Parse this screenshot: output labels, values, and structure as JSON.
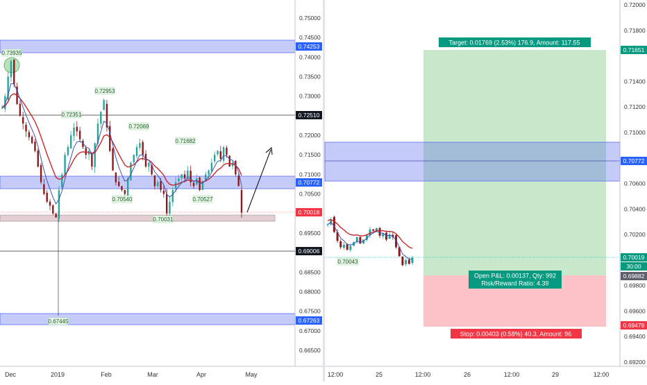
{
  "colors": {
    "up_candle": "#26a69a",
    "down_candle": "#8b1a1a",
    "ema_red": "#c62828",
    "ema_blue": "#3f51b5",
    "zone_blue": "#5b6cf0",
    "zone_pink": "#c9a7ad",
    "target_green": "#4caf50",
    "stop_red": "#f23645",
    "label_bg_black": "#131722"
  },
  "left_chart": {
    "y_axis_ticks": [
      "0.75000",
      "0.74500",
      "0.74000",
      "0.73500",
      "0.73000",
      "0.72500",
      "0.72000",
      "0.71500",
      "0.71000",
      "0.70500",
      "0.70000",
      "0.69500",
      "0.69000",
      "0.68500",
      "0.68000",
      "0.67500",
      "0.67000",
      "0.66500"
    ],
    "x_axis_ticks": [
      "Dec",
      "2019",
      "Feb",
      "Mar",
      "Apr",
      "May"
    ],
    "price_tags": {
      "zone_top": "0.74253",
      "resistance": "0.72510",
      "zone_mid": "0.70772",
      "current": "0.70018",
      "support": "0.69006",
      "zone_bottom": "0.67263"
    },
    "annotations": [
      "0.73935",
      "0.72953",
      "0.72351",
      "0.72069",
      "0.71682",
      "0.70540",
      "0.70527",
      "0.70031",
      "0.67445"
    ]
  },
  "right_chart": {
    "y_axis_ticks": [
      "0.72000",
      "0.71800",
      "0.71400",
      "0.71200",
      "0.71000",
      "0.70600",
      "0.70400",
      "0.70200",
      "0.69800",
      "0.69600",
      "0.69400",
      "0.69200"
    ],
    "x_axis_ticks": [
      "12:00",
      "25",
      "12:00",
      "26",
      "12:00",
      "29",
      "12:00"
    ],
    "price_tags": {
      "target": "0.71651",
      "zone": "0.70772",
      "current": "0.70019",
      "countdown": "30:00",
      "entry": "0.69882",
      "stop": "0.69479"
    },
    "annotation": "0.70043",
    "target_label": "Target: 0.01769 (2.53%) 176.9, Amount: 117.55",
    "pnl_line1": "Open P&L: 0.00137, Qty: 992",
    "pnl_line2": "Risk/Reward Ratio: 4.39",
    "stop_label": "Stop: 0.00403 (0.58%) 40.3, Amount: 96"
  },
  "chart_data": [
    {
      "type": "candlestick",
      "title": "",
      "x_axis": [
        "Dec",
        "2019",
        "Feb",
        "Mar",
        "Apr",
        "May"
      ],
      "ylim": [
        0.663,
        0.752
      ],
      "y_scale": "linear",
      "grid": false,
      "close_series": [
        0.727,
        0.73,
        0.735,
        0.739,
        0.733,
        0.728,
        0.725,
        0.723,
        0.721,
        0.7195,
        0.718,
        0.716,
        0.712,
        0.708,
        0.705,
        0.703,
        0.702,
        0.7,
        0.699,
        0.706,
        0.71,
        0.715,
        0.717,
        0.72,
        0.722,
        0.721,
        0.719,
        0.717,
        0.715,
        0.716,
        0.712,
        0.718,
        0.723,
        0.726,
        0.729,
        0.722,
        0.716,
        0.711,
        0.708,
        0.707,
        0.706,
        0.705,
        0.709,
        0.713,
        0.715,
        0.717,
        0.718,
        0.715,
        0.712,
        0.713,
        0.71,
        0.707,
        0.708,
        0.706,
        0.705,
        0.7,
        0.703,
        0.706,
        0.708,
        0.709,
        0.71,
        0.709,
        0.711,
        0.708,
        0.707,
        0.709,
        0.706,
        0.708,
        0.71,
        0.711,
        0.713,
        0.715,
        0.716,
        0.714,
        0.717,
        0.715,
        0.712,
        0.713,
        0.71,
        0.707,
        0.7002
      ],
      "reference_levels": [
        0.74253,
        0.7251,
        0.70772,
        0.69006,
        0.67263
      ],
      "annotated_prices": [
        0.73935,
        0.72953,
        0.72351,
        0.72069,
        0.71682,
        0.7054,
        0.70527,
        0.70031,
        0.67445
      ]
    },
    {
      "type": "candlestick",
      "title": "",
      "x_axis": [
        "12:00",
        "25",
        "12:00",
        "26",
        "12:00",
        "29",
        "12:00"
      ],
      "ylim": [
        0.6918,
        0.7211
      ],
      "y_scale": "linear",
      "grid": false,
      "close_series": [
        0.7028,
        0.7032,
        0.7022,
        0.7015,
        0.701,
        0.7012,
        0.7008,
        0.7011,
        0.7014,
        0.7018,
        0.7013,
        0.7016,
        0.702,
        0.7024,
        0.7023,
        0.7025,
        0.7019,
        0.7021,
        0.7016,
        0.702,
        0.7018,
        0.701,
        0.7003,
        0.6996,
        0.7,
        0.6997,
        0.70019
      ],
      "position": {
        "entry": 0.69882,
        "target": 0.71651,
        "stop": 0.69479,
        "zone": 0.70772
      },
      "annotated_prices": [
        0.70043
      ]
    }
  ]
}
